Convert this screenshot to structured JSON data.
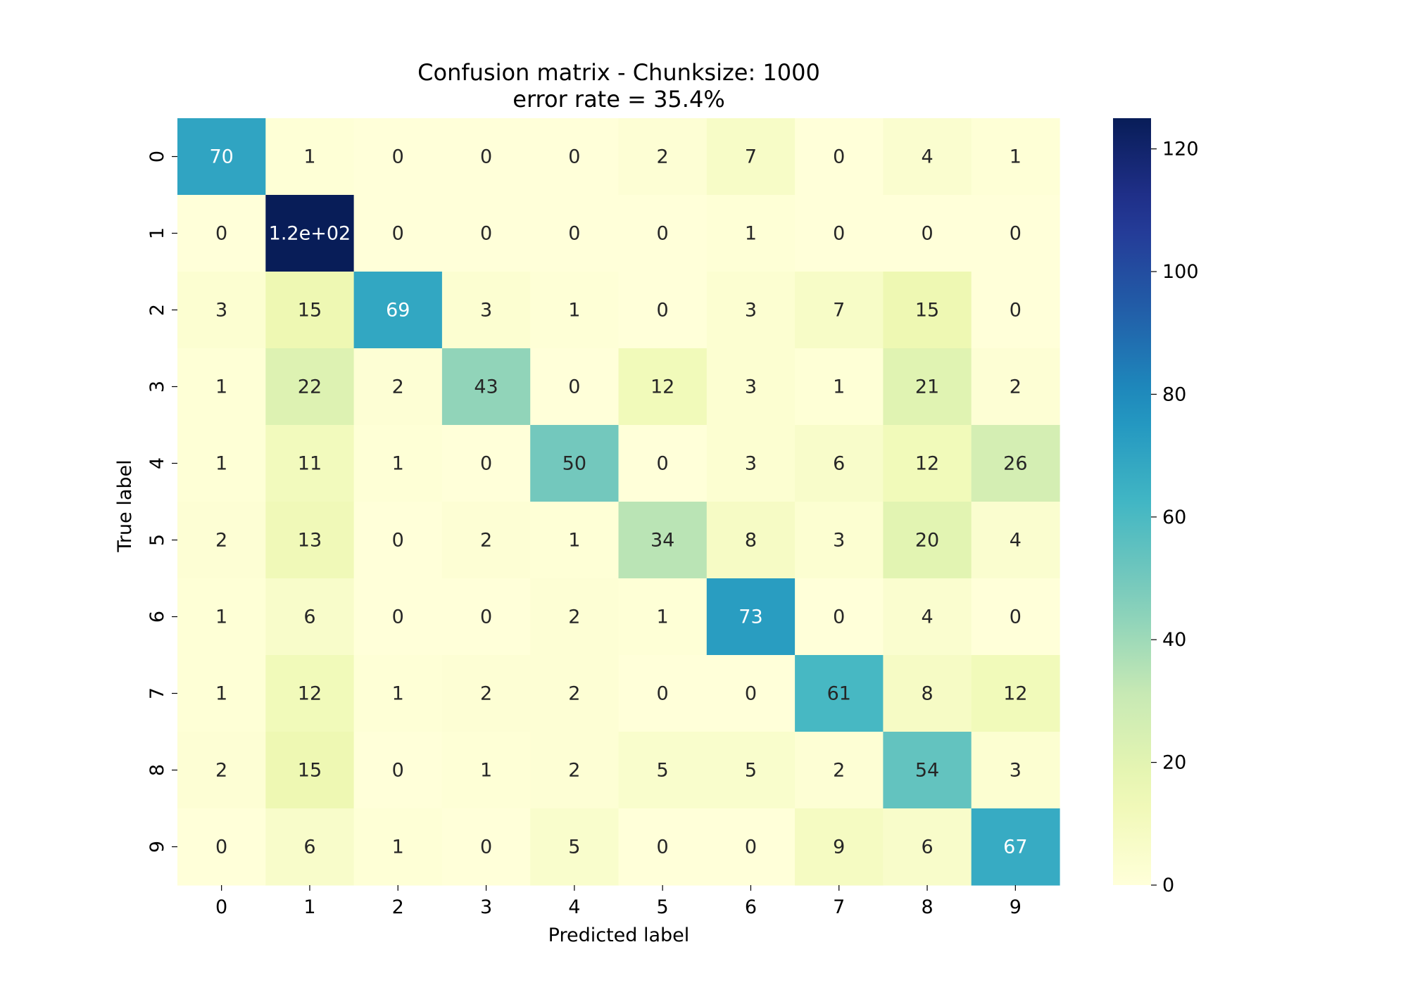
{
  "chart_data": {
    "type": "heatmap",
    "title_line1": "Confusion matrix - Chunksize: 1000",
    "title_line2": "error rate = 35.4%",
    "xlabel": "Predicted label",
    "ylabel": "True label",
    "x_categories": [
      "0",
      "1",
      "2",
      "3",
      "4",
      "5",
      "6",
      "7",
      "8",
      "9"
    ],
    "y_categories": [
      "0",
      "1",
      "2",
      "3",
      "4",
      "5",
      "6",
      "7",
      "8",
      "9"
    ],
    "values": [
      [
        70,
        1,
        0,
        0,
        0,
        2,
        7,
        0,
        4,
        1
      ],
      [
        0,
        125,
        0,
        0,
        0,
        0,
        1,
        0,
        0,
        0
      ],
      [
        3,
        15,
        69,
        3,
        1,
        0,
        3,
        7,
        15,
        0
      ],
      [
        1,
        22,
        2,
        43,
        0,
        12,
        3,
        1,
        21,
        2
      ],
      [
        1,
        11,
        1,
        0,
        50,
        0,
        3,
        6,
        12,
        26
      ],
      [
        2,
        13,
        0,
        2,
        1,
        34,
        8,
        3,
        20,
        4
      ],
      [
        1,
        6,
        0,
        0,
        2,
        1,
        73,
        0,
        4,
        0
      ],
      [
        1,
        12,
        1,
        2,
        2,
        0,
        0,
        61,
        8,
        12
      ],
      [
        2,
        15,
        0,
        1,
        2,
        5,
        5,
        2,
        54,
        3
      ],
      [
        0,
        6,
        1,
        0,
        5,
        0,
        0,
        9,
        6,
        67
      ]
    ],
    "cell_labels": [
      [
        "70",
        "1",
        "0",
        "0",
        "0",
        "2",
        "7",
        "0",
        "4",
        "1"
      ],
      [
        "0",
        "1.2e+02",
        "0",
        "0",
        "0",
        "0",
        "1",
        "0",
        "0",
        "0"
      ],
      [
        "3",
        "15",
        "69",
        "3",
        "1",
        "0",
        "3",
        "7",
        "15",
        "0"
      ],
      [
        "1",
        "22",
        "2",
        "43",
        "0",
        "12",
        "3",
        "1",
        "21",
        "2"
      ],
      [
        "1",
        "11",
        "1",
        "0",
        "50",
        "0",
        "3",
        "6",
        "12",
        "26"
      ],
      [
        "2",
        "13",
        "0",
        "2",
        "1",
        "34",
        "8",
        "3",
        "20",
        "4"
      ],
      [
        "1",
        "6",
        "0",
        "0",
        "2",
        "1",
        "73",
        "0",
        "4",
        "0"
      ],
      [
        "1",
        "12",
        "1",
        "2",
        "2",
        "0",
        "0",
        "61",
        "8",
        "12"
      ],
      [
        "2",
        "15",
        "0",
        "1",
        "2",
        "5",
        "5",
        "2",
        "54",
        "3"
      ],
      [
        "0",
        "6",
        "1",
        "0",
        "5",
        "0",
        "0",
        "9",
        "6",
        "67"
      ]
    ],
    "colorbar": {
      "min": 0,
      "max": 125,
      "ticks": [
        0,
        20,
        40,
        60,
        80,
        100,
        120
      ],
      "colormap": "YlGnBu"
    }
  }
}
